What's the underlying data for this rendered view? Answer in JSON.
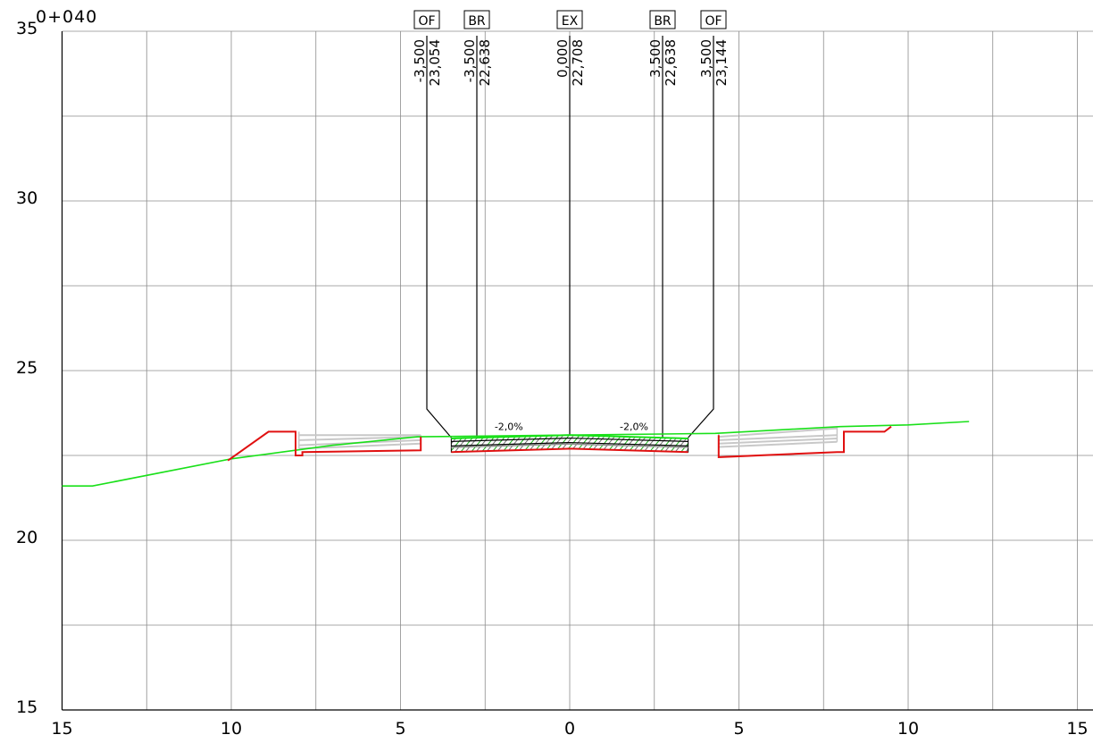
{
  "station_label": "0+040",
  "colors": {
    "grid": "#8c8c8c",
    "existing_ground": "#19e019",
    "design_profile": "#e01010",
    "subgrade_layers": "#c8c8c8",
    "leader_lines": "#000000"
  },
  "chart_data": {
    "type": "cross-section",
    "x_ticks": [
      "15",
      "10",
      "5",
      "0",
      "5",
      "10",
      "15"
    ],
    "x_tick_offsets": [
      -15,
      -10,
      -5,
      0,
      5,
      10,
      15
    ],
    "y_ticks": [
      35,
      30,
      25,
      20,
      15
    ],
    "xlim": [
      -15,
      15
    ],
    "ylim": [
      15,
      35
    ],
    "grid": true,
    "slope_labels": [
      {
        "text": "-2,0%",
        "offset": -1.8,
        "elevation": 23.25
      },
      {
        "text": "-2,0%",
        "offset": 1.9,
        "elevation": 23.25
      }
    ],
    "points": [
      {
        "code": "OF",
        "offset_text": "-3,500",
        "elevation_text": "23,054",
        "offset": -3.5,
        "elevation": 23.054
      },
      {
        "code": "BR",
        "offset_text": "-3,500",
        "elevation_text": "22,638",
        "offset": -3.5,
        "elevation": 22.638
      },
      {
        "code": "EX",
        "offset_text": "0,000",
        "elevation_text": "22,708",
        "offset": 0.0,
        "elevation": 22.708
      },
      {
        "code": "BR",
        "offset_text": "3,500",
        "elevation_text": "22,638",
        "offset": 3.5,
        "elevation": 22.638
      },
      {
        "code": "OF",
        "offset_text": "3,500",
        "elevation_text": "23,144",
        "offset": 3.5,
        "elevation": 23.144
      }
    ],
    "existing_ground": [
      [
        -15,
        21.6
      ],
      [
        -14.1,
        21.6
      ],
      [
        -10,
        22.4
      ],
      [
        -7,
        22.8
      ],
      [
        -4.5,
        23.05
      ],
      [
        0,
        23.1
      ],
      [
        4.3,
        23.15
      ],
      [
        8,
        23.35
      ],
      [
        10,
        23.4
      ],
      [
        11.8,
        23.5
      ]
    ],
    "design_left": [
      [
        -10.1,
        22.35
      ],
      [
        -8.9,
        23.2
      ],
      [
        -8.1,
        23.2
      ],
      [
        -8.1,
        22.5
      ],
      [
        -7.9,
        22.5
      ],
      [
        -7.9,
        22.6
      ],
      [
        -4.4,
        22.65
      ],
      [
        -4.4,
        23.05
      ]
    ],
    "design_right": [
      [
        4.4,
        23.1
      ],
      [
        4.4,
        22.45
      ],
      [
        7.9,
        22.6
      ],
      [
        8.1,
        22.6
      ],
      [
        8.1,
        23.2
      ],
      [
        9.3,
        23.2
      ],
      [
        9.5,
        23.35
      ]
    ],
    "pavement_bottom": [
      [
        -3.5,
        22.6
      ],
      [
        0,
        22.7
      ],
      [
        3.5,
        22.6
      ]
    ],
    "subgrade_left_ribbons": [
      [
        -8.0,
        22.7,
        -4.4,
        22.85
      ],
      [
        -8.0,
        22.8,
        -4.4,
        22.95
      ],
      [
        -8.0,
        22.95,
        -4.4,
        23.05
      ],
      [
        -8.0,
        23.1,
        -4.4,
        23.1
      ]
    ],
    "subgrade_right_ribbons": [
      [
        4.4,
        22.75,
        7.9,
        22.9
      ],
      [
        4.4,
        22.85,
        7.9,
        23.0
      ],
      [
        4.4,
        22.95,
        7.9,
        23.1
      ],
      [
        4.4,
        23.05,
        7.9,
        23.3
      ]
    ]
  }
}
